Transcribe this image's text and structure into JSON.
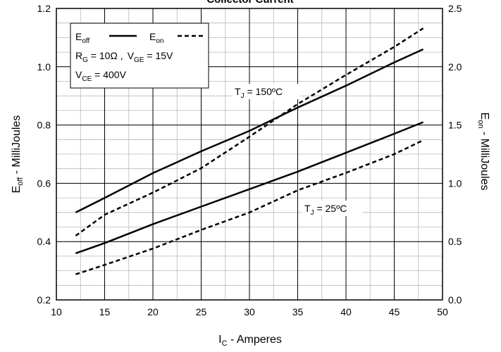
{
  "chart_data": {
    "type": "line",
    "title": "Collector Current",
    "xlabel": "I",
    "xlabel_sub": "C",
    "xlabel_rest": " - Amperes",
    "ylabel_left": "E",
    "ylabel_left_sub": "off",
    "ylabel_left_rest": " - MilliJoules",
    "ylabel_right": "E",
    "ylabel_right_sub": "on",
    "ylabel_right_rest": " - MilliJoules",
    "xlim": [
      10,
      50
    ],
    "ylim_left": [
      0.2,
      1.2
    ],
    "ylim_right": [
      0.0,
      2.5
    ],
    "x_ticks": [
      10,
      15,
      20,
      25,
      30,
      35,
      40,
      45,
      50
    ],
    "y_left_ticks": [
      "0.2",
      "0.4",
      "0.6",
      "0.8",
      "1.0",
      "1.2"
    ],
    "y_right_ticks": [
      "0.0",
      "0.5",
      "1.0",
      "1.5",
      "2.0",
      "2.5"
    ],
    "grid": true,
    "legend": {
      "eoff_main": "E",
      "eoff_sub": "off",
      "eon_main": "E",
      "eon_sub": "on",
      "rg_main": "R",
      "rg_sub": "G",
      "rg_value": " = 10Ω ,",
      "vge_main": "V",
      "vge_sub": "GE",
      "vge_value": " = 15V",
      "vce_main": "V",
      "vce_sub": "CE",
      "vce_value": " = 400V"
    },
    "annotations": {
      "tj150_main": "T",
      "tj150_sub": "J",
      "tj150_value": " = 150ºC",
      "tj25_main": "T",
      "tj25_sub": "J",
      "tj25_value": " = 25ºC"
    },
    "series": [
      {
        "key": "eoff_150",
        "axis": "left",
        "style": "solid",
        "x": [
          12,
          15,
          20,
          25,
          30,
          35,
          40,
          45,
          48
        ],
        "y": [
          0.5,
          0.55,
          0.635,
          0.71,
          0.78,
          0.86,
          0.935,
          1.015,
          1.06
        ]
      },
      {
        "key": "eoff_25",
        "axis": "left",
        "style": "solid",
        "x": [
          12,
          15,
          20,
          25,
          30,
          35,
          40,
          45,
          48
        ],
        "y": [
          0.36,
          0.395,
          0.46,
          0.52,
          0.58,
          0.64,
          0.705,
          0.77,
          0.81
        ]
      },
      {
        "key": "eon_150",
        "axis": "right",
        "style": "dashed",
        "x": [
          12,
          15,
          20,
          25,
          30,
          35,
          40,
          45,
          48
        ],
        "y": [
          0.55,
          0.73,
          0.92,
          1.13,
          1.4,
          1.68,
          1.93,
          2.17,
          2.33
        ]
      },
      {
        "key": "eon_25",
        "axis": "right",
        "style": "dashed",
        "x": [
          12,
          15,
          20,
          25,
          30,
          35,
          40,
          45,
          48
        ],
        "y": [
          0.22,
          0.3,
          0.44,
          0.6,
          0.75,
          0.94,
          1.09,
          1.25,
          1.37
        ]
      }
    ]
  }
}
